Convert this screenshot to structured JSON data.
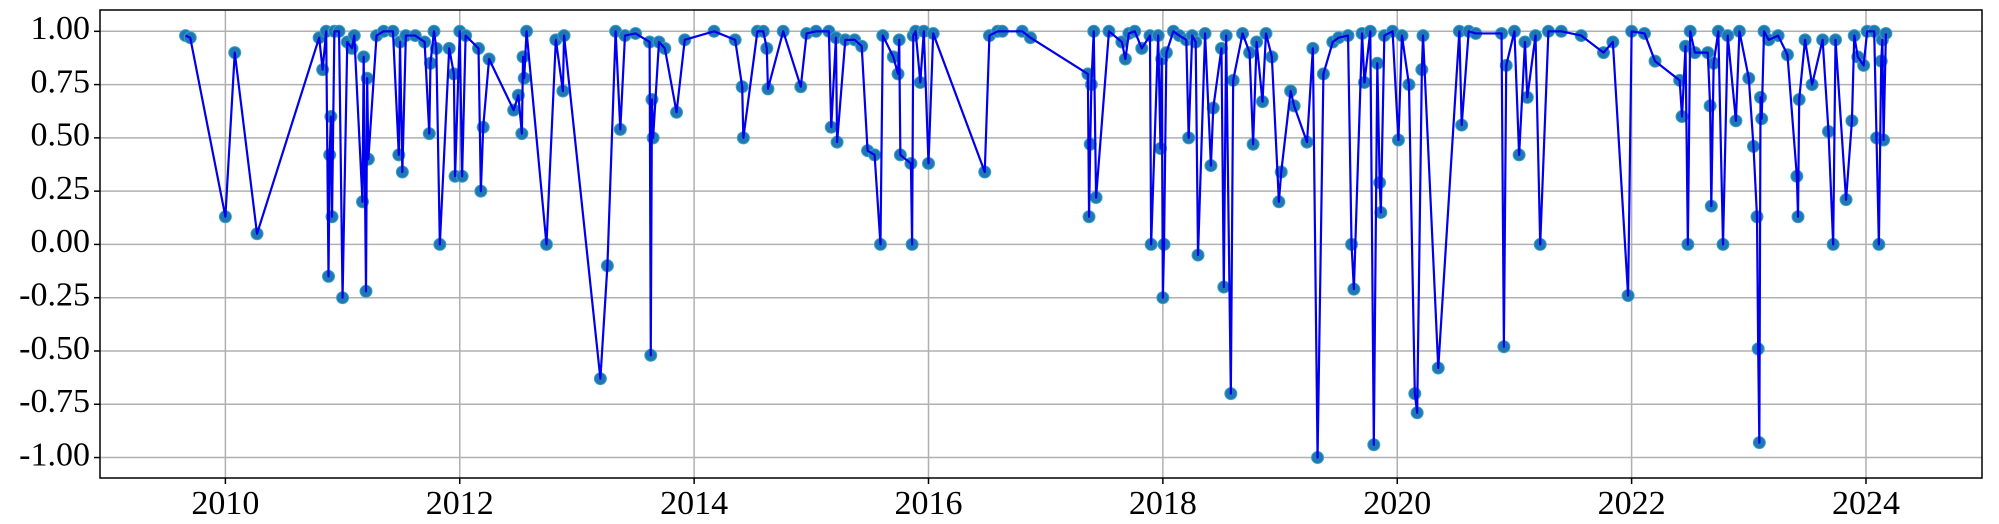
{
  "chart_data": {
    "type": "line",
    "x": [
      2009.66,
      2009.7,
      2010.0,
      2010.08,
      2010.27,
      2010.8,
      2010.83,
      2010.86,
      2010.88,
      2010.89,
      2010.9,
      2010.91,
      2010.93,
      2010.97,
      2011.0,
      2011.04,
      2011.08,
      2011.1,
      2011.17,
      2011.18,
      2011.2,
      2011.21,
      2011.22,
      2011.29,
      2011.35,
      2011.43,
      2011.48,
      2011.49,
      2011.51,
      2011.54,
      2011.62,
      2011.7,
      2011.74,
      2011.75,
      2011.78,
      2011.8,
      2011.83,
      2011.91,
      2011.95,
      2011.96,
      2012.0,
      2012.02,
      2012.05,
      2012.16,
      2012.18,
      2012.2,
      2012.25,
      2012.46,
      2012.5,
      2012.53,
      2012.54,
      2012.55,
      2012.57,
      2012.74,
      2012.82,
      2012.88,
      2012.89,
      2013.2,
      2013.26,
      2013.33,
      2013.37,
      2013.41,
      2013.5,
      2013.62,
      2013.63,
      2013.64,
      2013.65,
      2013.7,
      2013.75,
      2013.85,
      2013.92,
      2014.17,
      2014.35,
      2014.41,
      2014.42,
      2014.54,
      2014.59,
      2014.62,
      2014.63,
      2014.76,
      2014.91,
      2014.96,
      2015.04,
      2015.15,
      2015.17,
      2015.21,
      2015.22,
      2015.29,
      2015.37,
      2015.43,
      2015.48,
      2015.54,
      2015.59,
      2015.61,
      2015.7,
      2015.74,
      2015.75,
      2015.76,
      2015.85,
      2015.86,
      2015.87,
      2015.89,
      2015.93,
      2015.96,
      2016.0,
      2016.04,
      2016.48,
      2016.52,
      2016.59,
      2016.63,
      2016.8,
      2016.87,
      2017.36,
      2017.37,
      2017.38,
      2017.39,
      2017.41,
      2017.43,
      2017.54,
      2017.65,
      2017.68,
      2017.71,
      2017.76,
      2017.82,
      2017.89,
      2017.9,
      2017.96,
      2017.98,
      2017.99,
      2018.0,
      2018.01,
      2018.03,
      2018.09,
      2018.14,
      2018.2,
      2018.22,
      2018.25,
      2018.28,
      2018.3,
      2018.36,
      2018.41,
      2018.43,
      2018.5,
      2018.52,
      2018.54,
      2018.58,
      2018.6,
      2018.68,
      2018.74,
      2018.77,
      2018.8,
      2018.85,
      2018.88,
      2018.93,
      2018.99,
      2019.01,
      2019.09,
      2019.12,
      2019.23,
      2019.28,
      2019.32,
      2019.37,
      2019.45,
      2019.5,
      2019.58,
      2019.61,
      2019.63,
      2019.7,
      2019.72,
      2019.77,
      2019.8,
      2019.83,
      2019.85,
      2019.86,
      2019.89,
      2019.96,
      2020.01,
      2020.04,
      2020.1,
      2020.15,
      2020.17,
      2020.21,
      2020.22,
      2020.35,
      2020.53,
      2020.55,
      2020.61,
      2020.67,
      2020.89,
      2020.91,
      2020.93,
      2021.0,
      2021.04,
      2021.09,
      2021.11,
      2021.18,
      2021.22,
      2021.29,
      2021.4,
      2021.57,
      2021.76,
      2021.84,
      2021.97,
      2022.0,
      2022.11,
      2022.2,
      2022.41,
      2022.43,
      2022.46,
      2022.48,
      2022.5,
      2022.54,
      2022.65,
      2022.67,
      2022.68,
      2022.7,
      2022.74,
      2022.78,
      2022.82,
      2022.89,
      2022.92,
      2023.0,
      2023.04,
      2023.07,
      2023.08,
      2023.09,
      2023.1,
      2023.11,
      2023.13,
      2023.17,
      2023.25,
      2023.33,
      2023.41,
      2023.42,
      2023.43,
      2023.48,
      2023.54,
      2023.63,
      2023.68,
      2023.72,
      2023.74,
      2023.83,
      2023.88,
      2023.9,
      2023.93,
      2023.98,
      2024.01,
      2024.07,
      2024.09,
      2024.11,
      2024.13,
      2024.14,
      2024.15,
      2024.17
    ],
    "values": [
      0.98,
      0.97,
      0.13,
      0.9,
      0.05,
      0.97,
      0.82,
      1.0,
      -0.15,
      0.42,
      0.6,
      0.13,
      1.0,
      1.0,
      -0.25,
      0.95,
      0.92,
      0.98,
      0.2,
      0.88,
      -0.22,
      0.78,
      0.4,
      0.98,
      1.0,
      1.0,
      0.42,
      0.95,
      0.34,
      0.98,
      0.98,
      0.95,
      0.52,
      0.85,
      1.0,
      0.92,
      0.0,
      0.92,
      0.8,
      0.32,
      1.0,
      0.32,
      0.98,
      0.92,
      0.25,
      0.55,
      0.87,
      0.63,
      0.7,
      0.52,
      0.88,
      0.78,
      1.0,
      0.0,
      0.96,
      0.72,
      0.98,
      -0.63,
      -0.1,
      1.0,
      0.54,
      0.98,
      0.99,
      0.95,
      -0.52,
      0.68,
      0.5,
      0.95,
      0.92,
      0.62,
      0.96,
      1.0,
      0.96,
      0.74,
      0.5,
      1.0,
      1.0,
      0.92,
      0.73,
      1.0,
      0.74,
      0.99,
      1.0,
      1.0,
      0.55,
      0.97,
      0.48,
      0.96,
      0.96,
      0.93,
      0.44,
      0.42,
      0.0,
      0.98,
      0.88,
      0.8,
      0.96,
      0.42,
      0.38,
      0.0,
      0.98,
      1.0,
      0.76,
      1.0,
      0.38,
      0.99,
      0.34,
      0.98,
      1.0,
      1.0,
      1.0,
      0.97,
      0.8,
      0.13,
      0.47,
      0.75,
      1.0,
      0.22,
      1.0,
      0.95,
      0.87,
      0.99,
      1.0,
      0.92,
      0.98,
      0.0,
      0.98,
      0.45,
      0.87,
      -0.25,
      0.0,
      0.9,
      1.0,
      0.98,
      0.96,
      0.5,
      0.98,
      0.95,
      -0.05,
      0.99,
      0.37,
      0.64,
      0.92,
      -0.2,
      0.98,
      -0.7,
      0.77,
      0.99,
      0.9,
      0.47,
      0.95,
      0.67,
      0.99,
      0.88,
      0.2,
      0.34,
      0.72,
      0.65,
      0.48,
      0.92,
      -1.0,
      0.8,
      0.95,
      0.97,
      0.98,
      0.0,
      -0.21,
      0.99,
      0.76,
      1.0,
      -0.94,
      0.85,
      0.29,
      0.15,
      0.98,
      1.0,
      0.49,
      0.98,
      0.75,
      -0.7,
      -0.79,
      0.82,
      0.98,
      -0.58,
      1.0,
      0.56,
      1.0,
      0.99,
      0.99,
      -0.48,
      0.84,
      1.0,
      0.42,
      0.95,
      0.69,
      0.98,
      0.0,
      1.0,
      1.0,
      0.98,
      0.9,
      0.95,
      -0.24,
      1.0,
      0.99,
      0.86,
      0.77,
      0.6,
      0.93,
      0.0,
      1.0,
      0.9,
      0.9,
      0.65,
      0.18,
      0.85,
      1.0,
      0.0,
      0.98,
      0.58,
      1.0,
      0.78,
      0.46,
      0.13,
      -0.49,
      -0.93,
      0.69,
      0.59,
      1.0,
      0.96,
      0.98,
      0.89,
      0.32,
      0.13,
      0.68,
      0.96,
      0.75,
      0.96,
      0.53,
      0.0,
      0.96,
      0.21,
      0.58,
      0.98,
      0.88,
      0.84,
      1.0,
      1.0,
      0.5,
      0.0,
      0.86,
      0.96,
      0.49,
      0.99
    ],
    "color": "#0000ee",
    "marker_color": "#1f77b4",
    "xlim": [
      2008.93,
      2024.99
    ],
    "xticks": [
      2010,
      2012,
      2014,
      2016,
      2018,
      2020,
      2022,
      2024
    ],
    "ylim": [
      -1.096,
      1.1
    ],
    "yticks": [
      {
        "value": 1,
        "label": "1.00"
      },
      {
        "value": 0.75,
        "label": "0.75"
      },
      {
        "value": 0.5,
        "label": "0.50"
      },
      {
        "value": 0.25,
        "label": "0.25"
      },
      {
        "value": 0,
        "label": "0.00"
      },
      {
        "value": -0.25,
        "label": "-0.25"
      },
      {
        "value": -0.5,
        "label": "-0.50"
      },
      {
        "value": -0.75,
        "label": "-0.75"
      },
      {
        "value": -1,
        "label": "-1.00"
      }
    ],
    "grid": true
  }
}
